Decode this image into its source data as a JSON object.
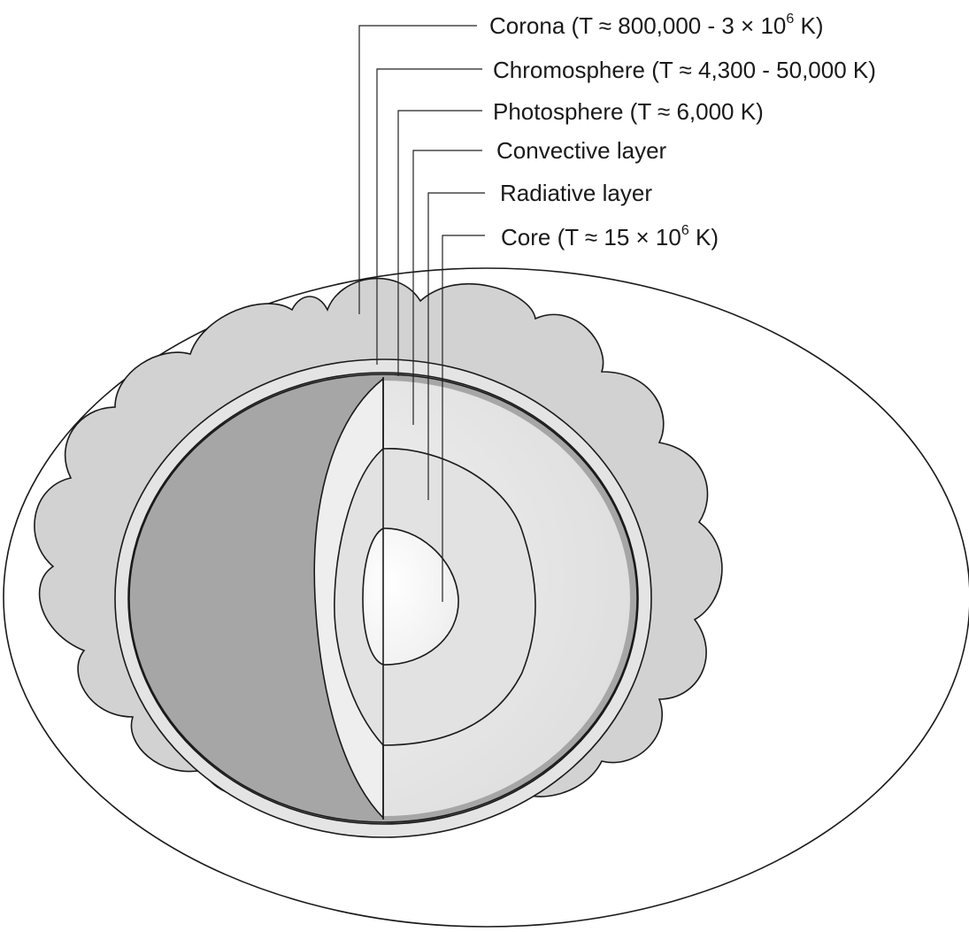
{
  "labels": {
    "corona": {
      "prefix": "Corona (T ≈ 800,000 - 3 × 10",
      "sup": "6",
      "suffix": " K)"
    },
    "chromosphere": {
      "text": "Chromosphere (T ≈ 4,300 - 50,000 K)"
    },
    "photosphere": {
      "text": "Photosphere (T ≈ 6,000 K)"
    },
    "convective": {
      "text": "Convective layer"
    },
    "radiative": {
      "text": "Radiative layer"
    },
    "core": {
      "prefix": "Core (T ≈ 15 × 10",
      "sup": "6",
      "suffix": " K)"
    }
  },
  "colors": {
    "corona_fill": "#d2d2d2",
    "chromosphere_fill": "#e4e4e4",
    "photosphere_fill": "#9a9a9a",
    "exterior_hemisphere": "#a6a6a6",
    "convective_fill": "#eeeeee",
    "radiative_fill": "#e2e2e2",
    "core_fill": "#f6f6f6"
  }
}
